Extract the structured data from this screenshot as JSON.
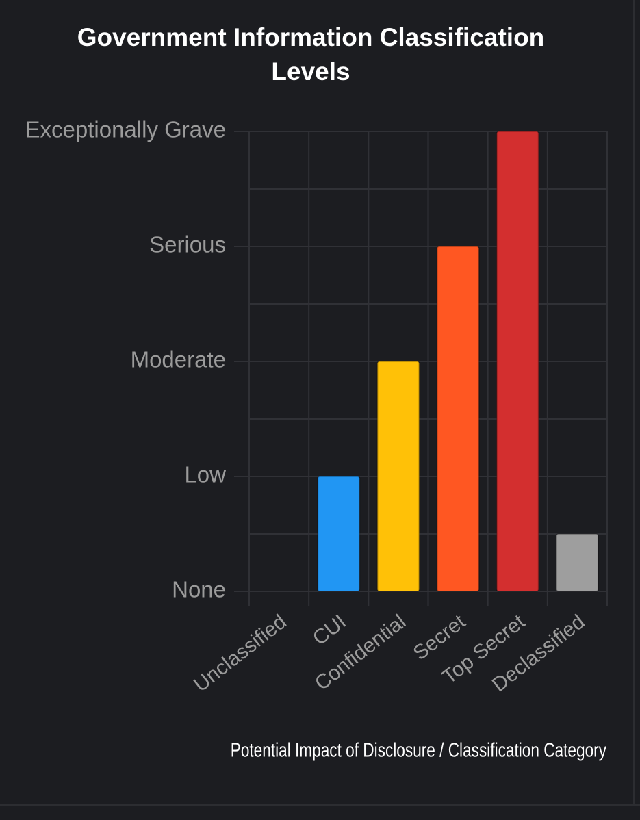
{
  "chart_data": {
    "type": "bar",
    "title": "Government Information Classification Levels",
    "x_label": "Potential Impact of Disclosure / Classification Category",
    "categories": [
      "Unclassified",
      "CUI",
      "Confidential",
      "Secret",
      "Top Secret",
      "Declassified"
    ],
    "values": [
      0,
      1,
      2,
      3,
      4,
      0.5
    ],
    "colors": [
      "#4caf50",
      "#2196f3",
      "#ffc107",
      "#ff5722",
      "#d32f2f",
      "#9e9e9e"
    ],
    "ylim": [
      0,
      4
    ],
    "yticks": [
      {
        "value": 0,
        "label": "None"
      },
      {
        "value": 1,
        "label": "Low"
      },
      {
        "value": 2,
        "label": "Moderate"
      },
      {
        "value": 3,
        "label": "Serious"
      },
      {
        "value": 4,
        "label": "Exceptionally Grave"
      }
    ],
    "yticks_minor": [
      0.5,
      1.5,
      2.5,
      3.5
    ],
    "grid": true
  }
}
